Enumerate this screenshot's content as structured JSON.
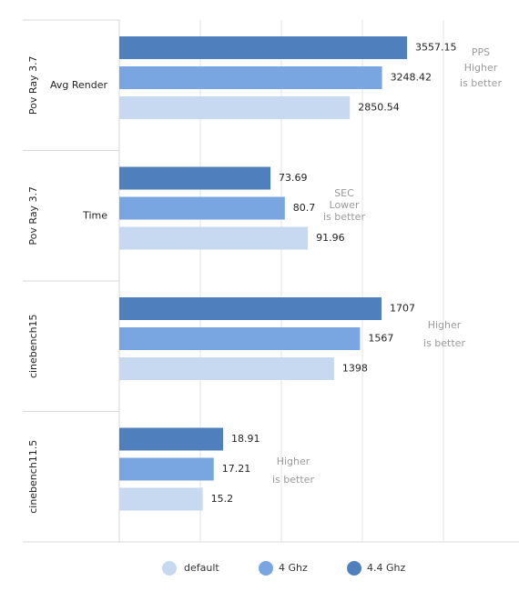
{
  "chart_data": {
    "type": "bar",
    "orientation": "horizontal",
    "xlim": [
      0,
      4000
    ],
    "grid": true,
    "legend_position": "bottom",
    "groups": [
      {
        "group_label": "Pov Ray 3.7",
        "metric": "Avg Render",
        "note": [
          "PPS",
          "Higher",
          "is better"
        ],
        "values": {
          "4.4 Ghz": 3557.15,
          "4 Ghz": 3248.42,
          "default": 2850.54
        },
        "labels": {
          "4.4 Ghz": "3557.15",
          "4 Ghz": "3248.42",
          "default": "2850.54"
        }
      },
      {
        "group_label": "Pov Ray 3.7",
        "metric": "Time",
        "note": [
          "SEC",
          "Lower",
          "is better"
        ],
        "values": {
          "4.4 Ghz": 73.69,
          "4 Ghz": 80.7,
          "default": 91.96
        },
        "labels": {
          "4.4 Ghz": "73.69",
          "4 Ghz": "80.7",
          "default": "91.96"
        }
      },
      {
        "group_label": "cinebench15",
        "metric": "",
        "note": [
          "Higher",
          "is better"
        ],
        "values": {
          "4.4 Ghz": 1707,
          "4 Ghz": 1567,
          "default": 1398
        },
        "labels": {
          "4.4 Ghz": "1707",
          "4 Ghz": "1567",
          "default": "1398"
        }
      },
      {
        "group_label": "cinebench11.5",
        "metric": "",
        "note": [
          "Higher",
          "is better"
        ],
        "values": {
          "4.4 Ghz": 18.91,
          "4 Ghz": 17.21,
          "default": 15.2
        },
        "labels": {
          "4.4 Ghz": "18.91",
          "4 Ghz": "17.21",
          "default": "15.2"
        }
      }
    ],
    "series": [
      {
        "name": "4.4 Ghz",
        "color": "#4f7fbd"
      },
      {
        "name": "4 Ghz",
        "color": "#79a5e0"
      },
      {
        "name": "default",
        "color": "#c6d9f1"
      }
    ],
    "legend": [
      {
        "name": "default",
        "color": "#c6d9f1"
      },
      {
        "name": "4 Ghz",
        "color": "#79a5e0"
      },
      {
        "name": "4.4 Ghz",
        "color": "#4f7fbd"
      }
    ]
  }
}
